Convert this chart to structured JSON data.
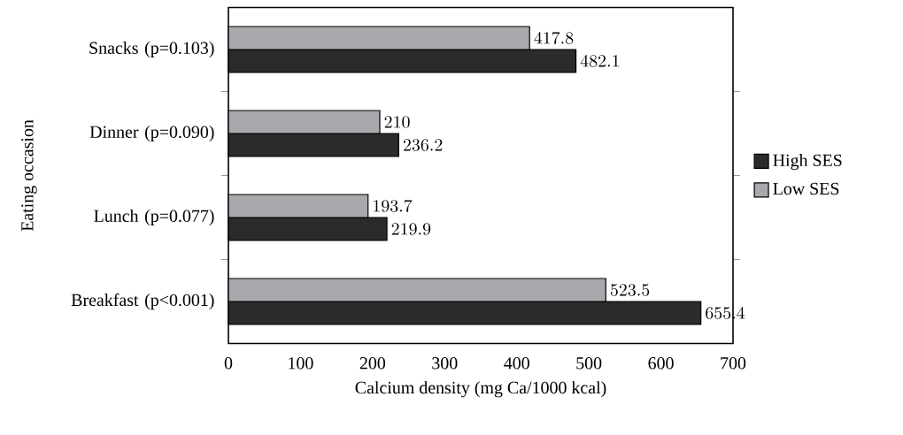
{
  "chart_data": {
    "type": "bar",
    "orientation": "horizontal",
    "xlabel": "Calcium density (mg Ca/1000 kcal)",
    "ylabel": "Eating occasion",
    "categories": [
      "Snacks (p=0.103)",
      "Dinner (p=0.090)",
      "Lunch (p=0.077)",
      "Breakfast (p<0.001)"
    ],
    "series": [
      {
        "name": "High SES",
        "color": "#2b2b2b",
        "values": [
          482.1,
          236.2,
          219.9,
          655.4
        ]
      },
      {
        "name": "Low SES",
        "color": "#a8a8ad",
        "values": [
          417.8,
          210,
          193.7,
          523.5
        ]
      }
    ],
    "xlim": [
      0,
      700
    ],
    "xticks": [
      0,
      100,
      200,
      300,
      400,
      500,
      600,
      700
    ],
    "data_labels": true,
    "legend": "right",
    "grid": false
  }
}
